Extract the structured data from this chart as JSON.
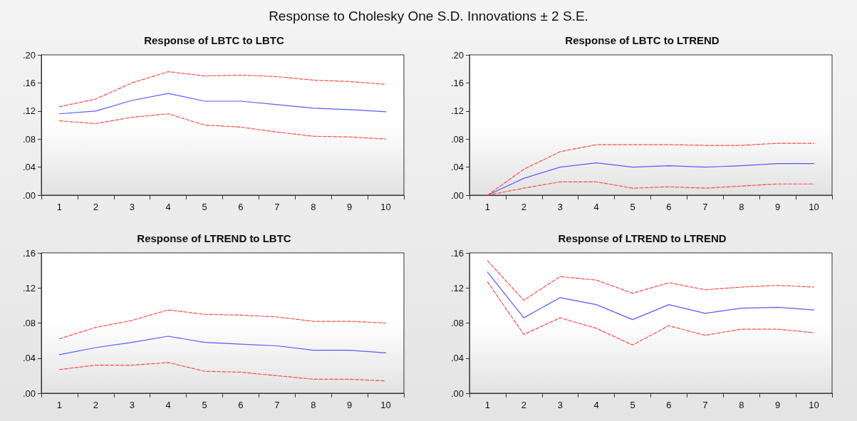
{
  "chart_data": [
    {
      "type": "line",
      "title": "Response of LBTC to LBTC",
      "annotations": [
        "Response to Cholesky One S.D. Innovations ± 2 S.E."
      ],
      "categories": [
        "1",
        "2",
        "3",
        "4",
        "5",
        "6",
        "7",
        "8",
        "9",
        "10"
      ],
      "ylim": [
        0,
        0.2
      ],
      "yticks": [
        {
          "value": 0,
          "label": ".00"
        },
        {
          "value": 0.04,
          "label": ".04"
        },
        {
          "value": 0.08,
          "label": ".08"
        },
        {
          "value": 0.12,
          "label": ".12"
        },
        {
          "value": 0.16,
          "label": ".16"
        },
        {
          "value": 0.2,
          "label": ".20"
        }
      ],
      "series": [
        {
          "color": "#5a5aff",
          "line_style": "solid",
          "values": [
            0.116,
            0.12,
            0.135,
            0.145,
            0.134,
            0.134,
            0.129,
            0.124,
            0.122,
            0.119
          ]
        },
        {
          "color": "#ff4a4a",
          "line_style": "dashed",
          "values": [
            0.126,
            0.137,
            0.16,
            0.176,
            0.17,
            0.171,
            0.169,
            0.164,
            0.162,
            0.158
          ]
        },
        {
          "color": "#ff4a4a",
          "line_style": "dashed",
          "values": [
            0.106,
            0.102,
            0.111,
            0.116,
            0.1,
            0.097,
            0.09,
            0.084,
            0.083,
            0.08
          ]
        }
      ]
    },
    {
      "type": "line",
      "title": "Response of LBTC to LTREND",
      "categories": [
        "1",
        "2",
        "3",
        "4",
        "5",
        "6",
        "7",
        "8",
        "9",
        "10"
      ],
      "ylim": [
        0,
        0.2
      ],
      "yticks": [
        {
          "value": 0,
          "label": ".00"
        },
        {
          "value": 0.04,
          "label": ".04"
        },
        {
          "value": 0.08,
          "label": ".08"
        },
        {
          "value": 0.12,
          "label": ".12"
        },
        {
          "value": 0.16,
          "label": ".16"
        },
        {
          "value": 0.2,
          "label": ".20"
        }
      ],
      "series": [
        {
          "color": "#5a5aff",
          "line_style": "solid",
          "values": [
            0,
            0.024,
            0.04,
            0.046,
            0.04,
            0.042,
            0.04,
            0.042,
            0.045,
            0.045
          ]
        },
        {
          "color": "#ff4a4a",
          "line_style": "dashed",
          "values": [
            0,
            0.037,
            0.062,
            0.072,
            0.072,
            0.072,
            0.071,
            0.071,
            0.074,
            0.074
          ]
        },
        {
          "color": "#ff4a4a",
          "line_style": "dashed",
          "values": [
            0,
            0.01,
            0.019,
            0.019,
            0.01,
            0.012,
            0.01,
            0.013,
            0.016,
            0.016
          ]
        }
      ]
    },
    {
      "type": "line",
      "title": "Response of LTREND to LBTC",
      "categories": [
        "1",
        "2",
        "3",
        "4",
        "5",
        "6",
        "7",
        "8",
        "9",
        "10"
      ],
      "ylim": [
        0,
        0.16
      ],
      "yticks": [
        {
          "value": 0,
          "label": ".00"
        },
        {
          "value": 0.04,
          "label": ".04"
        },
        {
          "value": 0.08,
          "label": ".08"
        },
        {
          "value": 0.12,
          "label": ".12"
        },
        {
          "value": 0.16,
          "label": ".16"
        }
      ],
      "series": [
        {
          "color": "#5a5aff",
          "line_style": "solid",
          "values": [
            0.044,
            0.052,
            0.058,
            0.065,
            0.058,
            0.056,
            0.054,
            0.049,
            0.049,
            0.046
          ]
        },
        {
          "color": "#ff4a4a",
          "line_style": "dashed",
          "values": [
            0.062,
            0.075,
            0.083,
            0.095,
            0.09,
            0.089,
            0.087,
            0.082,
            0.082,
            0.08
          ]
        },
        {
          "color": "#ff4a4a",
          "line_style": "dashed",
          "values": [
            0.027,
            0.032,
            0.032,
            0.035,
            0.025,
            0.024,
            0.02,
            0.016,
            0.016,
            0.014
          ]
        }
      ]
    },
    {
      "type": "line",
      "title": "Response of LTREND to LTREND",
      "categories": [
        "1",
        "2",
        "3",
        "4",
        "5",
        "6",
        "7",
        "8",
        "9",
        "10"
      ],
      "ylim": [
        0,
        0.16
      ],
      "yticks": [
        {
          "value": 0,
          "label": ".00"
        },
        {
          "value": 0.04,
          "label": ".04"
        },
        {
          "value": 0.08,
          "label": ".08"
        },
        {
          "value": 0.12,
          "label": ".12"
        },
        {
          "value": 0.16,
          "label": ".16"
        }
      ],
      "series": [
        {
          "color": "#5a5aff",
          "line_style": "solid",
          "values": [
            0.138,
            0.086,
            0.109,
            0.101,
            0.084,
            0.101,
            0.091,
            0.097,
            0.098,
            0.095
          ]
        },
        {
          "color": "#ff4a4a",
          "line_style": "dashed",
          "values": [
            0.151,
            0.106,
            0.133,
            0.129,
            0.114,
            0.126,
            0.118,
            0.121,
            0.123,
            0.121
          ]
        },
        {
          "color": "#ff4a4a",
          "line_style": "dashed",
          "values": [
            0.127,
            0.067,
            0.086,
            0.074,
            0.055,
            0.077,
            0.066,
            0.073,
            0.073,
            0.069
          ]
        }
      ]
    }
  ]
}
